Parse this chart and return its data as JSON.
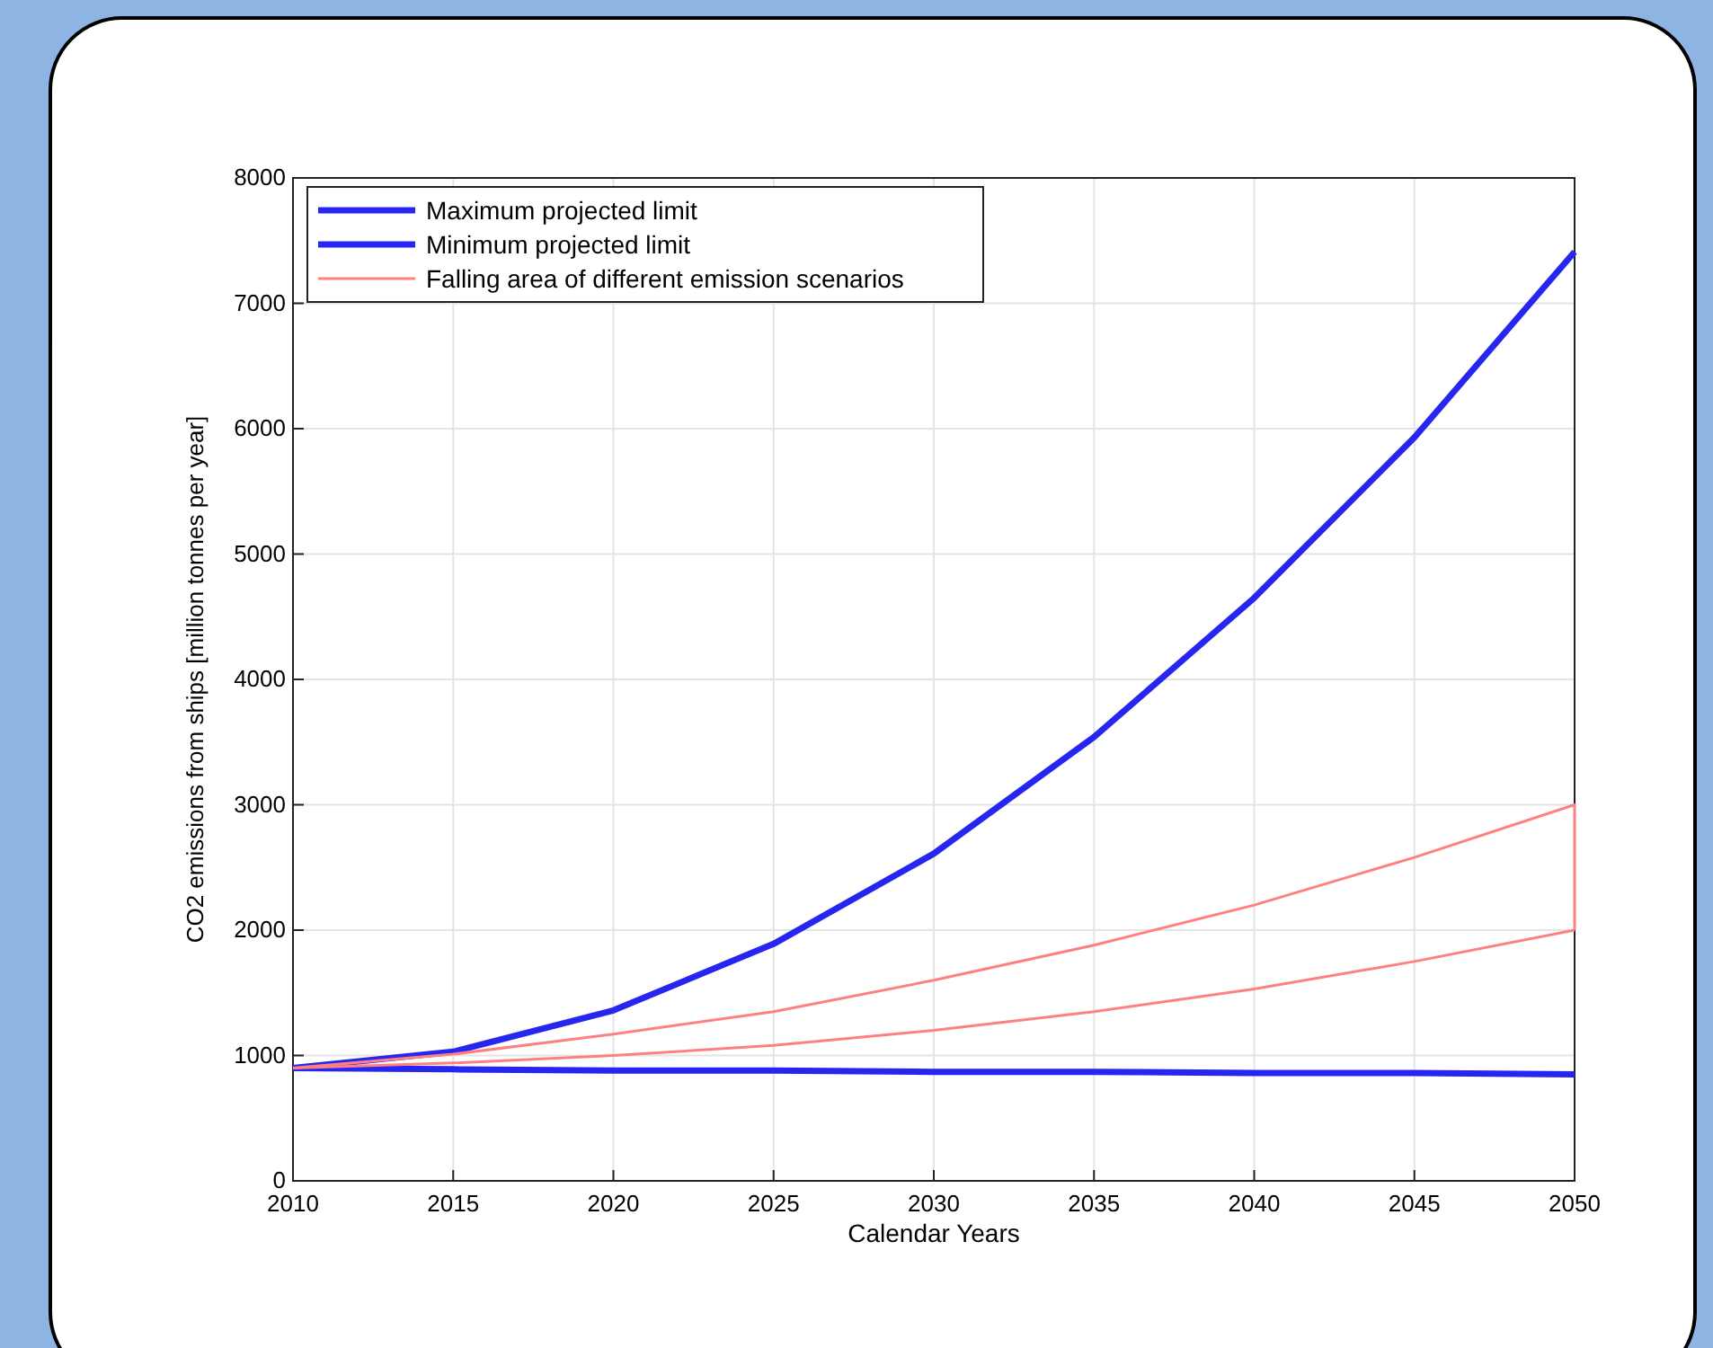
{
  "chart_data": {
    "type": "line",
    "xlabel": "Calendar Years",
    "ylabel": "CO2 emissions from ships [million tonnes per year]",
    "x": [
      2010,
      2015,
      2020,
      2025,
      2030,
      2035,
      2040,
      2045,
      2050
    ],
    "series": [
      {
        "name": "Maximum projected limit",
        "color": "#2626f0",
        "values": [
          900,
          1030,
          1360,
          1890,
          2610,
          3540,
          4650,
          5930,
          7410
        ]
      },
      {
        "name": "Minimum projected limit",
        "color": "#2626f0",
        "values": [
          900,
          890,
          880,
          880,
          870,
          870,
          860,
          860,
          850
        ]
      },
      {
        "name": "Falling area of different emission scenarios",
        "color": "#ff8080",
        "values": [
          900,
          940,
          1000,
          1080,
          1200,
          1350,
          1530,
          1750,
          2000
        ]
      },
      {
        "color": "#ff8080",
        "x": [
          2010,
          2015,
          2020,
          2025,
          2030,
          2035,
          2040,
          2045,
          2050,
          2050
        ],
        "values": [
          900,
          1010,
          1170,
          1350,
          1600,
          1880,
          2200,
          2580,
          3000,
          2000
        ]
      }
    ],
    "xlim": [
      2010,
      2050
    ],
    "xticks": [
      2010,
      2015,
      2020,
      2025,
      2030,
      2035,
      2040,
      2045,
      2050
    ],
    "ylim": [
      0,
      8000
    ],
    "yticks": [
      0,
      1000,
      2000,
      3000,
      4000,
      5000,
      6000,
      7000,
      8000
    ],
    "grid": true,
    "legend": "top left",
    "line_style": "solid"
  }
}
